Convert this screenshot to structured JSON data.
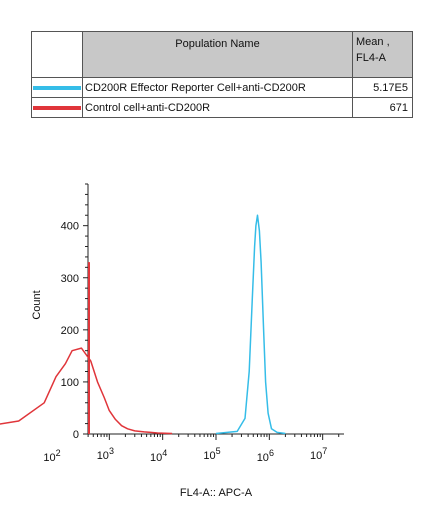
{
  "legend": {
    "header_name": "Population Name",
    "header_mean_line1": "Mean ,",
    "header_mean_line2": "FL4-A",
    "rows": [
      {
        "label": "CD200R Effector Reporter Cell+anti-CD200R",
        "mean": "5.17E5",
        "color": "#35bde8"
      },
      {
        "label": "Control cell+anti-CD200R",
        "mean": "671",
        "color": "#e0353a"
      }
    ]
  },
  "chart_data": {
    "type": "line",
    "xlabel": "FL4-A:: APC-A",
    "ylabel": "Count",
    "x_scale": "log",
    "x_tick_labels": [
      {
        "base": "10",
        "exp": "2",
        "value": 100
      },
      {
        "base": "10",
        "exp": "3",
        "value": 1000
      },
      {
        "base": "10",
        "exp": "4",
        "value": 10000
      },
      {
        "base": "10",
        "exp": "5",
        "value": 100000
      },
      {
        "base": "10",
        "exp": "6",
        "value": 1000000
      },
      {
        "base": "10",
        "exp": "7",
        "value": 10000000
      }
    ],
    "y_ticks": [
      0,
      100,
      200,
      300,
      400
    ],
    "ylim": [
      0,
      480
    ],
    "series": [
      {
        "name": "Control cell+anti-CD200R",
        "color": "#e0353a",
        "x": [
          5,
          20,
          60,
          100,
          150,
          200,
          300,
          450,
          600,
          800,
          1000,
          1300,
          1700,
          2200,
          3000,
          4500,
          6000,
          8000,
          15000
        ],
        "y": [
          15,
          25,
          60,
          110,
          135,
          160,
          165,
          140,
          100,
          70,
          45,
          28,
          16,
          10,
          6,
          4,
          3,
          2,
          1
        ]
      },
      {
        "name": "CD200R Effector Reporter Cell+anti-CD200R",
        "color": "#35bde8",
        "x": [
          100000,
          250000,
          350000,
          420000,
          480000,
          530000,
          560000,
          600000,
          650000,
          700000,
          780000,
          850000,
          950000,
          1100000,
          1400000,
          2000000
        ],
        "y": [
          1,
          5,
          30,
          120,
          260,
          360,
          400,
          420,
          390,
          330,
          200,
          100,
          40,
          10,
          3,
          1
        ]
      }
    ]
  }
}
